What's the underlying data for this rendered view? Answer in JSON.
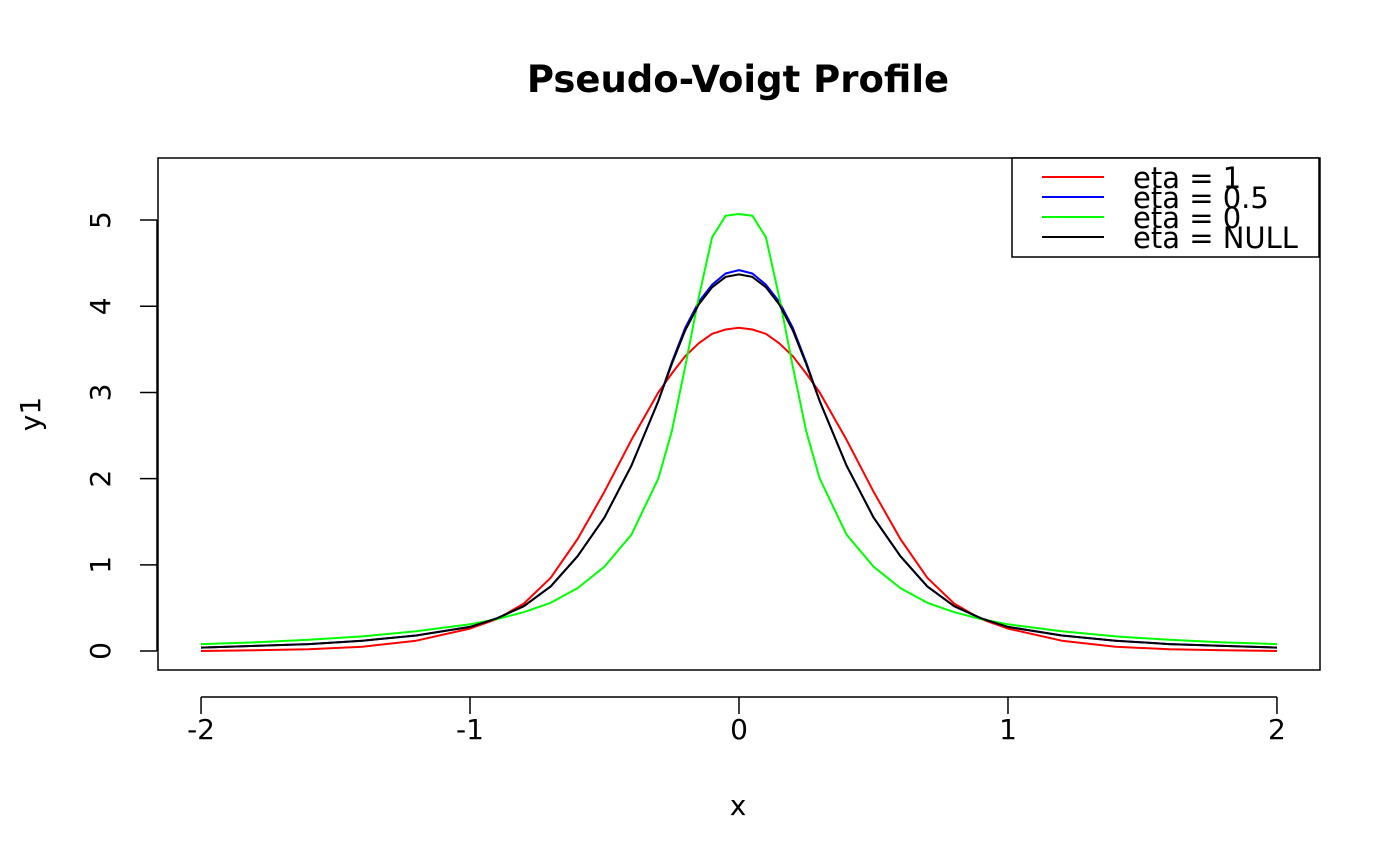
{
  "chart_data": {
    "type": "line",
    "title": "Pseudo-Voigt Profile",
    "xlabel": "x",
    "ylabel": "y1",
    "xlim": [
      -2.16,
      2.16
    ],
    "ylim": [
      -0.22,
      5.72
    ],
    "x_ticks": [
      -2,
      -1,
      0,
      1,
      2
    ],
    "x_tick_labels": [
      "-2",
      "-1",
      "0",
      "1",
      "2"
    ],
    "y_ticks": [
      0,
      1,
      2,
      3,
      4,
      5
    ],
    "y_tick_labels": [
      "0",
      "1",
      "2",
      "3",
      "4",
      "5"
    ],
    "grid": false,
    "legend_position": "top-right",
    "x": [
      -2.0,
      -1.8,
      -1.6,
      -1.4,
      -1.2,
      -1.0,
      -0.9,
      -0.8,
      -0.7,
      -0.6,
      -0.5,
      -0.4,
      -0.3,
      -0.25,
      -0.2,
      -0.15,
      -0.1,
      -0.05,
      0.0,
      0.05,
      0.1,
      0.15,
      0.2,
      0.25,
      0.3,
      0.4,
      0.5,
      0.6,
      0.7,
      0.8,
      0.9,
      1.0,
      1.2,
      1.4,
      1.6,
      1.8,
      2.0
    ],
    "series": [
      {
        "name": "eta = 1",
        "color": "#ff0000",
        "values": [
          0.0,
          0.01,
          0.02,
          0.05,
          0.12,
          0.26,
          0.37,
          0.55,
          0.85,
          1.3,
          1.85,
          2.45,
          3.0,
          3.22,
          3.42,
          3.57,
          3.68,
          3.73,
          3.75,
          3.73,
          3.68,
          3.57,
          3.42,
          3.22,
          3.0,
          2.45,
          1.85,
          1.3,
          0.85,
          0.55,
          0.37,
          0.26,
          0.12,
          0.05,
          0.02,
          0.01,
          0.0
        ]
      },
      {
        "name": "eta = 0.5",
        "color": "#0000ff",
        "values": [
          0.04,
          0.06,
          0.08,
          0.12,
          0.18,
          0.28,
          0.38,
          0.52,
          0.75,
          1.1,
          1.55,
          2.15,
          2.9,
          3.35,
          3.75,
          4.05,
          4.25,
          4.38,
          4.42,
          4.38,
          4.25,
          4.05,
          3.75,
          3.35,
          2.9,
          2.15,
          1.55,
          1.1,
          0.75,
          0.52,
          0.38,
          0.28,
          0.18,
          0.12,
          0.08,
          0.06,
          0.04
        ]
      },
      {
        "name": "eta = 0",
        "color": "#00ff00",
        "values": [
          0.08,
          0.1,
          0.13,
          0.17,
          0.23,
          0.31,
          0.37,
          0.45,
          0.56,
          0.73,
          0.98,
          1.35,
          2.0,
          2.55,
          3.3,
          4.1,
          4.8,
          5.05,
          5.07,
          5.05,
          4.8,
          4.1,
          3.3,
          2.55,
          2.0,
          1.35,
          0.98,
          0.73,
          0.56,
          0.45,
          0.37,
          0.31,
          0.23,
          0.17,
          0.13,
          0.1,
          0.08
        ]
      },
      {
        "name": "eta = NULL",
        "color": "#000000",
        "values": [
          0.04,
          0.06,
          0.08,
          0.12,
          0.18,
          0.28,
          0.38,
          0.52,
          0.75,
          1.1,
          1.55,
          2.15,
          2.9,
          3.33,
          3.72,
          4.02,
          4.22,
          4.34,
          4.37,
          4.34,
          4.22,
          4.02,
          3.72,
          3.33,
          2.9,
          2.15,
          1.55,
          1.1,
          0.75,
          0.52,
          0.38,
          0.28,
          0.18,
          0.12,
          0.08,
          0.06,
          0.04
        ]
      }
    ]
  }
}
